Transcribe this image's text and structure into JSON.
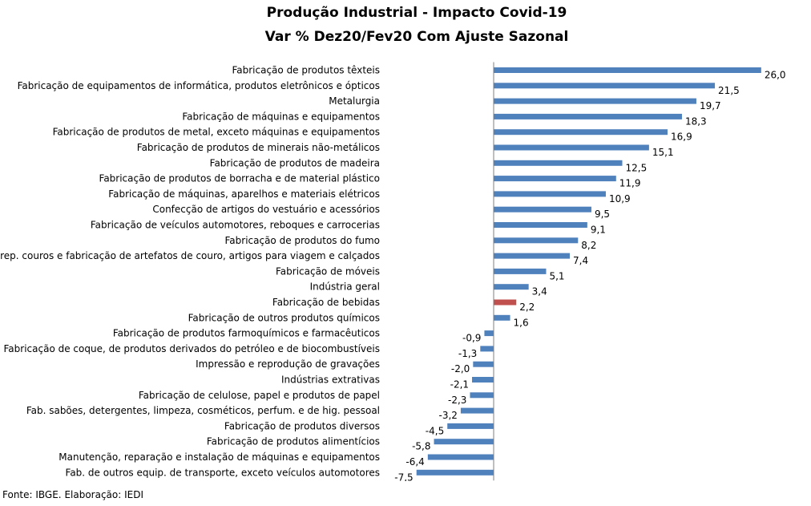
{
  "chart_data": {
    "type": "bar",
    "orientation": "horizontal",
    "title": "Produção Industrial - Impacto Covid-19",
    "subtitle": "Var % Dez20/Fev20 Com Ajuste Sazonal",
    "source": "Fonte: IBGE. Elaboração: IEDI",
    "colors": {
      "default": "#4F81BD",
      "highlight": "#C0504D"
    },
    "highlight_category": "Fabricação de bebidas",
    "grid": false,
    "legend": "none",
    "categories": [
      "Fabricação de produtos têxteis",
      "Fabricação de equipamentos de informática, produtos eletrônicos e ópticos",
      "Metalurgia",
      "Fabricação de máquinas e equipamentos",
      "Fabricação de produtos de metal, exceto máquinas e equipamentos",
      "Fabricação de produtos de minerais não-metálicos",
      "Fabricação de produtos de madeira",
      "Fabricação de produtos de borracha e de material plástico",
      "Fabricação de máquinas, aparelhos e materiais elétricos",
      "Confecção de artigos do vestuário e acessórios",
      "Fabricação de veículos automotores, reboques e carrocerias",
      "Fabricação de produtos do fumo",
      "Prep. couros e fabricação de artefatos de couro, artigos para viagem e calçados",
      "Fabricação de móveis",
      "Indústria geral",
      "Fabricação de bebidas",
      "Fabricação de outros produtos químicos",
      "Fabricação de produtos farmoquímicos e farmacêuticos",
      "Fabricação de coque, de produtos derivados do petróleo e de biocombustíveis",
      "Impressão e reprodução de gravações",
      "Indústrias extrativas",
      "Fabricação de celulose, papel e produtos de papel",
      "Fab. sabões, detergentes, limpeza, cosméticos, perfum. e de hig. pessoal",
      "Fabricação de produtos diversos",
      "Fabricação de produtos alimentícios",
      "Manutenção, reparação e instalação de máquinas e equipamentos",
      "Fab. de outros equip. de transporte, exceto veículos automotores"
    ],
    "values": [
      26.0,
      21.5,
      19.7,
      18.3,
      16.9,
      15.1,
      12.5,
      11.9,
      10.9,
      9.5,
      9.1,
      8.2,
      7.4,
      5.1,
      3.4,
      2.2,
      1.6,
      -0.9,
      -1.3,
      -2.0,
      -2.1,
      -2.3,
      -3.2,
      -4.5,
      -5.8,
      -6.4,
      -7.5
    ],
    "value_labels": [
      "26,0",
      "21,5",
      "19,7",
      "18,3",
      "16,9",
      "15,1",
      "12,5",
      "11,9",
      "10,9",
      "9,5",
      "9,1",
      "8,2",
      "7,4",
      "5,1",
      "3,4",
      "2,2",
      "1,6",
      "-0,9",
      "-1,3",
      "-2,0",
      "-2,1",
      "-2,3",
      "-3,2",
      "-4,5",
      "-5,8",
      "-6,4",
      "-7,5"
    ]
  }
}
